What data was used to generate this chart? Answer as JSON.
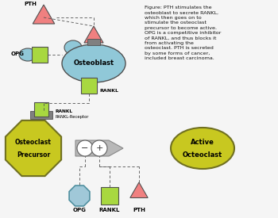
{
  "bg_color": "#f5f5f5",
  "pth_color": "#f08080",
  "opg_color": "#a0c8d8",
  "rankl_color": "#a8d840",
  "osteoblast_color": "#90c8d8",
  "osteoclast_precursor_color": "#c8c820",
  "active_osteoclast_color": "#c8c820",
  "receptor_color": "#808080",
  "figure_text": "Figure: PTH stimulates the\nosteoblast to secrete RANKL,\nwhich then goes on to\nstimulate the osteoclast\nprecursor to become active.\nOPG is a competitive inhibitor\nof RANKL, and thus blocks it\nfrom activating the\nosteoclast. PTH is secreted\nby some forms of cancer,\nincluded breast carcinoma."
}
